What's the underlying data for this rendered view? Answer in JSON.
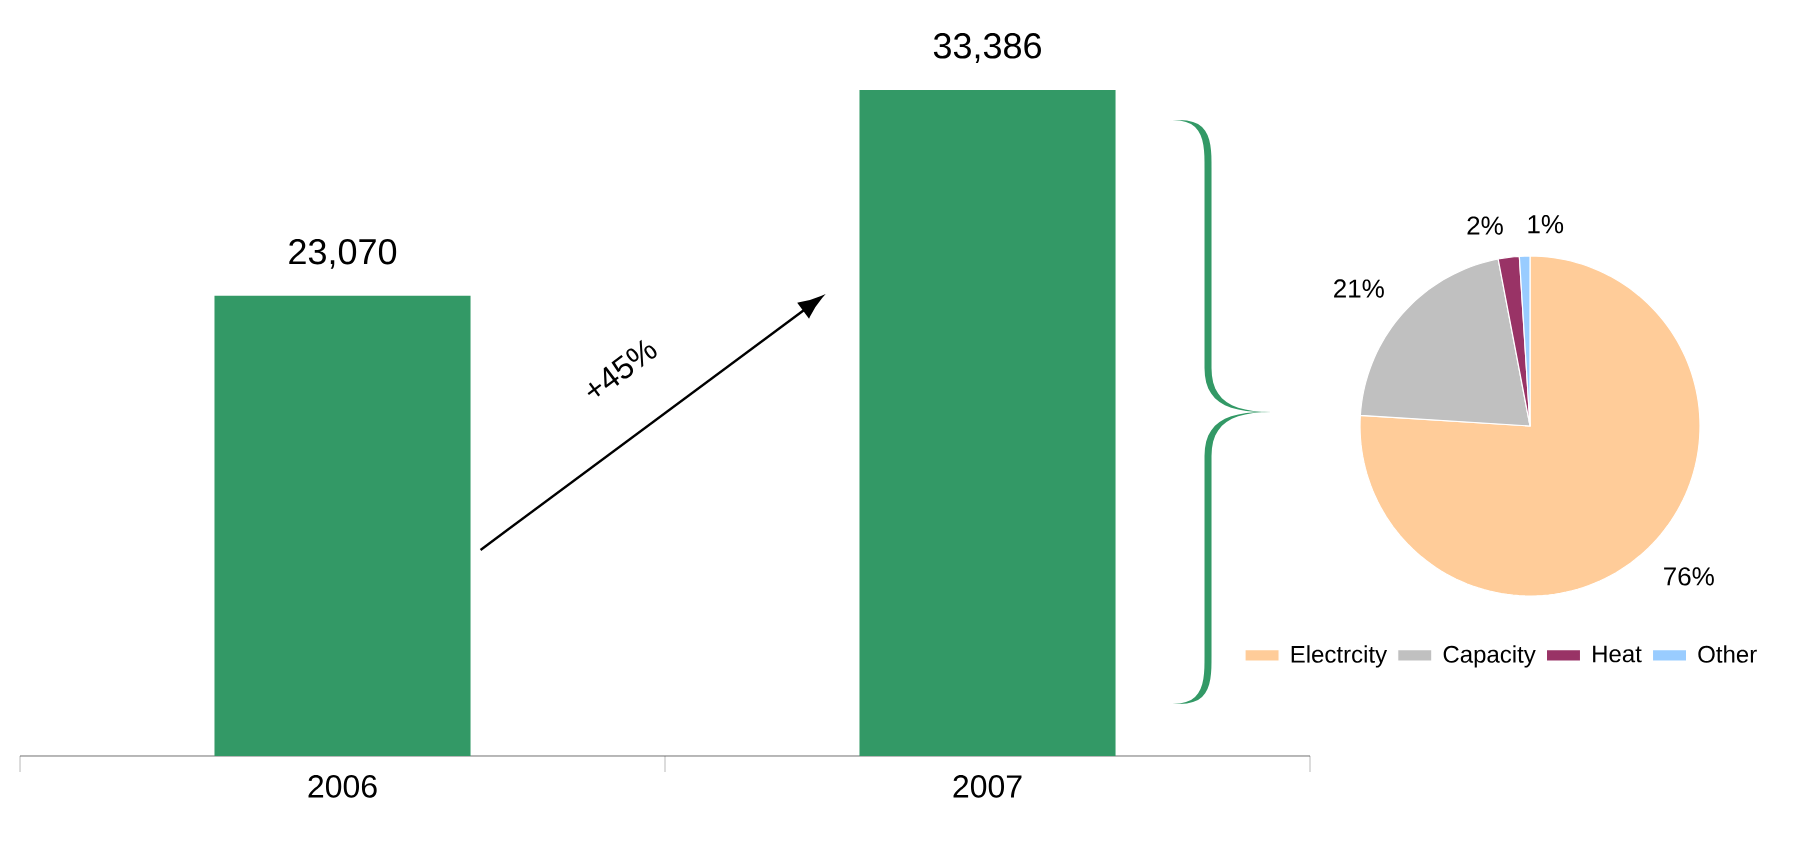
{
  "chart_data": [
    {
      "type": "bar",
      "categories": [
        "2006",
        "2007"
      ],
      "values": [
        23070,
        33386
      ],
      "value_labels": [
        "23,070",
        "33,386"
      ],
      "color": "#339966",
      "tick_labels": "x",
      "annotations": [
        "+45%"
      ]
    },
    {
      "type": "pie",
      "categories": [
        "Electrcity",
        "Capacity",
        "Heat",
        "Other"
      ],
      "values": [
        76,
        21,
        2,
        1
      ],
      "value_labels": [
        "76%",
        "21%",
        "2%",
        "1%"
      ],
      "colors": [
        "#ffcc99",
        "#c0c0c0",
        "#993366",
        "#99ccff"
      ],
      "legend": "bottom"
    }
  ]
}
